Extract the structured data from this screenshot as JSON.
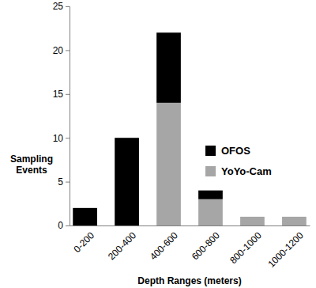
{
  "chart_data": {
    "type": "bar",
    "categories": [
      "0-200",
      "200-400",
      "400-600",
      "600-800",
      "800-1000",
      "1000-1200"
    ],
    "series": [
      {
        "name": "OFOS",
        "color": "#000000",
        "values": [
          2,
          10,
          8,
          1,
          0,
          0
        ]
      },
      {
        "name": "YoYo-Cam",
        "color": "#a6a6a6",
        "values": [
          0,
          0,
          14,
          3,
          1,
          1
        ]
      }
    ],
    "x_label": "Depth Ranges (meters)",
    "y_label": "Sampling Events",
    "ylim": [
      0,
      25
    ],
    "yticks": [
      0,
      5,
      10,
      15,
      20,
      25
    ],
    "stacked": true,
    "grid": false,
    "legend": "right"
  }
}
